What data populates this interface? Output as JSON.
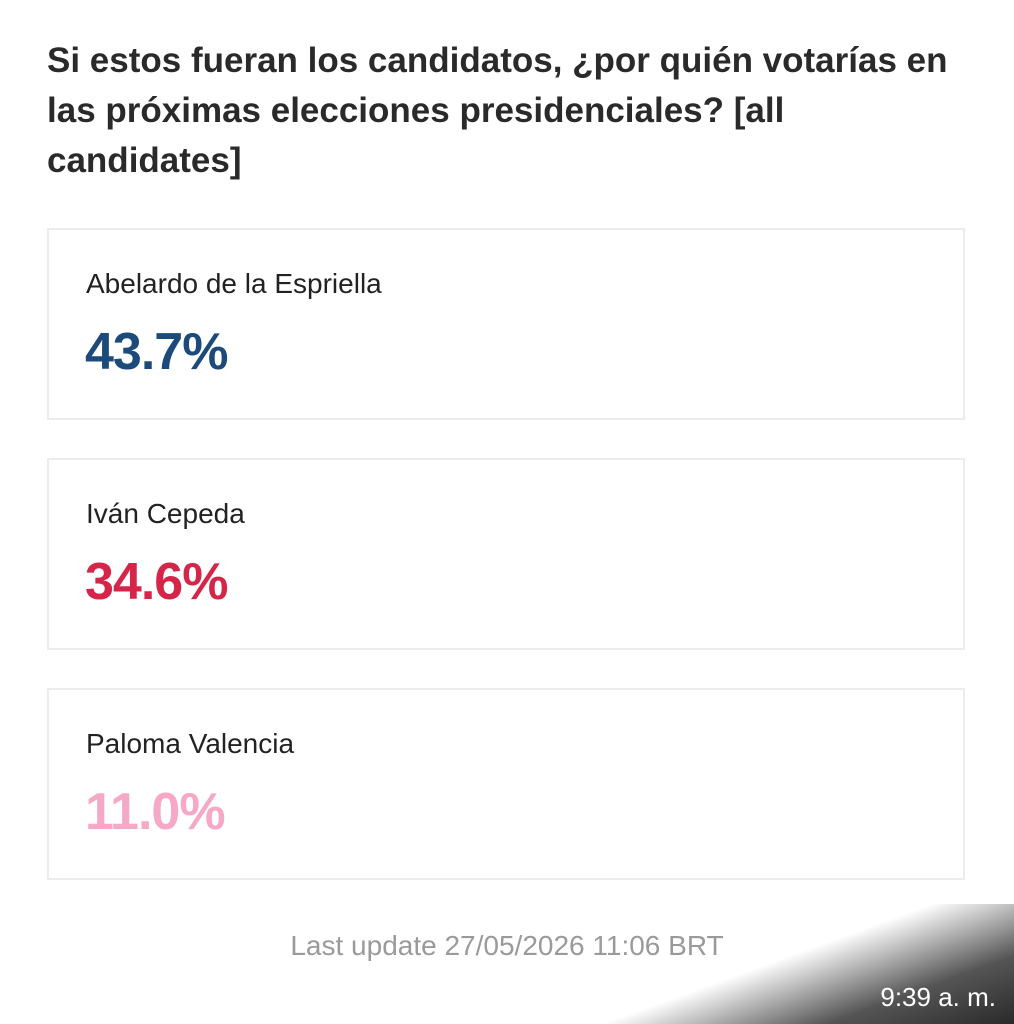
{
  "header": {
    "title": "Si estos fueran los candidatos, ¿por quién votarías en las próximas elecciones presidenciales? [all candidates]"
  },
  "candidates": [
    {
      "name": "Abelardo de la Espriella",
      "value": "43.7%"
    },
    {
      "name": "Iván Cepeda",
      "value": "34.6%"
    },
    {
      "name": "Paloma Valencia",
      "value": "11.0%"
    }
  ],
  "footer": {
    "last_update": "Last update 27/05/2026 11:06 BRT"
  },
  "status_bar": {
    "time": "9:39 a. m."
  }
}
